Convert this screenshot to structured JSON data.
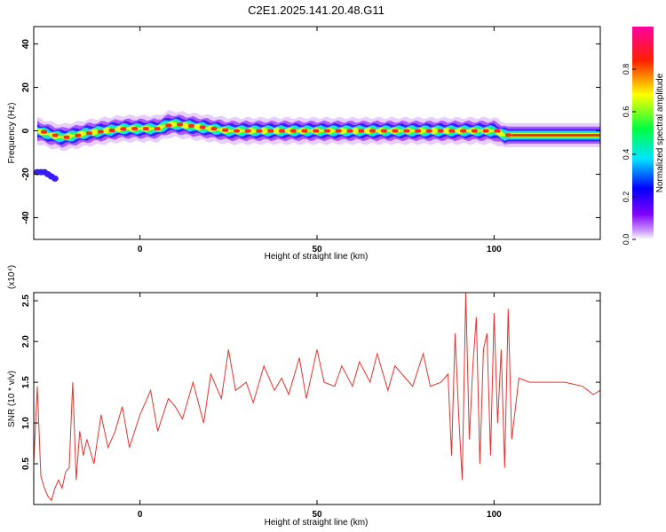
{
  "title": "C2E1.2025.141.20.48.G11",
  "charts": {
    "spectrogram": {
      "xlabel": "Height of straight line (km)",
      "ylabel": "Frequency (Hz)",
      "xticks": [
        0,
        50,
        100
      ],
      "yticks": [
        -40,
        -20,
        0,
        20,
        40
      ]
    },
    "snr": {
      "xlabel": "Height of straight line (km)",
      "ylabel": "SNR (10 * v/v)",
      "scale_label": "(x10⁴)",
      "xticks": [
        0,
        50,
        100
      ],
      "yticks": [
        "0.5",
        "1.0",
        "1.5",
        "2.0",
        "2.5"
      ]
    }
  },
  "colorbar": {
    "label": "Normalized spectral amplitude",
    "ticks": [
      "0.0",
      "0.2",
      "0.4",
      "0.6",
      "0.8"
    ]
  },
  "chart_data": [
    {
      "type": "heatmap",
      "title": "C2E1.2025.141.20.48.G11",
      "xlabel": "Height of straight line (km)",
      "ylabel": "Frequency (Hz)",
      "xlim": [
        -30,
        130
      ],
      "ylim": [
        -50,
        48
      ],
      "colorscale": "rainbow (violet → blue → cyan → green → yellow → red → magenta)",
      "colorbar_range": [
        0,
        1
      ],
      "colorbar_label": "Normalized spectral amplitude",
      "ridge": {
        "x": [
          -29,
          -27,
          -25,
          -22,
          -18,
          -15,
          -10,
          -5,
          0,
          5,
          8,
          10,
          15,
          20,
          25,
          30,
          35,
          40,
          45,
          50,
          55,
          60,
          65,
          70,
          75,
          80,
          85,
          90,
          95,
          100,
          103,
          105,
          110,
          120,
          130
        ],
        "y": [
          0,
          -1,
          -2,
          -3,
          -2,
          -1,
          0,
          1,
          1,
          1,
          3,
          3,
          2,
          1,
          0,
          0,
          0,
          0,
          0,
          0,
          0,
          0,
          0,
          0,
          0,
          0,
          0,
          0,
          0,
          0,
          -2,
          -2,
          -2,
          -2,
          -2
        ]
      },
      "side_band": {
        "x": [
          -29,
          -28,
          -27,
          -26,
          -25,
          -24
        ],
        "y": [
          -19,
          -19,
          -19,
          -20,
          -21,
          -22
        ]
      },
      "grid": false
    },
    {
      "type": "line",
      "xlabel": "Height of straight line (km)",
      "ylabel": "SNR (10 * v/v)",
      "y_scale_factor": "x10^4",
      "xlim": [
        -30,
        130
      ],
      "ylim": [
        0,
        2.6
      ],
      "color": "#e8312c",
      "series": [
        {
          "x": [
            -30,
            -29,
            -28,
            -27,
            -26,
            -25,
            -24,
            -23,
            -22,
            -21,
            -20,
            -19,
            -18,
            -17,
            -16,
            -15,
            -13,
            -11,
            -9,
            -7,
            -5,
            -3,
            0,
            3,
            5,
            8,
            10,
            12,
            15,
            18,
            20,
            23,
            25,
            27,
            30,
            32,
            35,
            38,
            40,
            42,
            45,
            47,
            50,
            52,
            55,
            57,
            60,
            62,
            65,
            67,
            70,
            72,
            75,
            77,
            80,
            82,
            85,
            87,
            88,
            89,
            90,
            91,
            92,
            93,
            94,
            95,
            96,
            97,
            98,
            99,
            100,
            101,
            102,
            103,
            104,
            105,
            107,
            110,
            115,
            120,
            125,
            128,
            130
          ],
          "y": [
            0.5,
            1.45,
            0.35,
            0.2,
            0.1,
            0.05,
            0.2,
            0.3,
            0.2,
            0.4,
            0.45,
            1.5,
            0.3,
            0.9,
            0.6,
            0.8,
            0.5,
            1.1,
            0.7,
            0.9,
            1.2,
            0.7,
            1.1,
            1.4,
            0.9,
            1.3,
            1.2,
            1.05,
            1.5,
            1.0,
            1.6,
            1.3,
            1.9,
            1.4,
            1.5,
            1.25,
            1.7,
            1.4,
            1.55,
            1.35,
            1.8,
            1.3,
            1.9,
            1.5,
            1.45,
            1.7,
            1.45,
            1.75,
            1.5,
            1.85,
            1.4,
            1.7,
            1.55,
            1.45,
            1.85,
            1.45,
            1.5,
            1.6,
            0.6,
            2.1,
            1.1,
            0.3,
            2.6,
            0.8,
            1.7,
            2.3,
            0.5,
            1.9,
            2.1,
            0.6,
            2.35,
            1.0,
            1.9,
            0.45,
            2.4,
            0.8,
            1.55,
            1.5,
            1.5,
            1.5,
            1.45,
            1.35,
            1.4
          ]
        }
      ],
      "grid": false
    }
  ]
}
